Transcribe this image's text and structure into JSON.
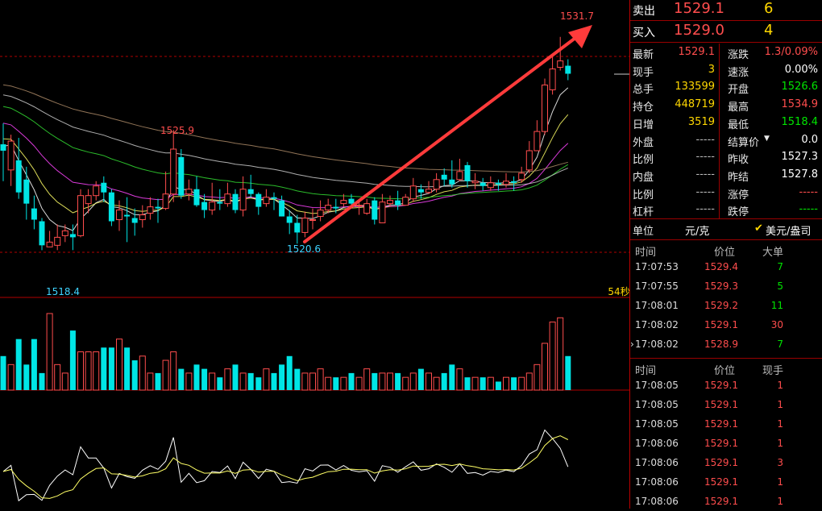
{
  "chart": {
    "annotations": {
      "high_label": "1531.7",
      "peak_label": "1525.9",
      "low_mid_label": "1520.6",
      "low_label": "1518.4",
      "countdown": "54秒"
    }
  },
  "chart_data": {
    "type": "candlestick",
    "candles": [
      [
        1525.0,
        1524.6,
        1526.3,
        1522.7
      ],
      [
        1523.4,
        1525.2,
        1525.6,
        1522.4
      ],
      [
        1524.0,
        1522.0,
        1525.4,
        1521.6
      ],
      [
        1522.8,
        1521.3,
        1523.6,
        1520.3
      ],
      [
        1521.0,
        1520.3,
        1521.8,
        1519.7
      ],
      [
        1520.2,
        1518.7,
        1520.4,
        1518.4
      ],
      [
        1518.6,
        1518.9,
        1519.6,
        1518.6
      ],
      [
        1518.7,
        1519.2,
        1520.0,
        1518.4
      ],
      [
        1519.3,
        1519.6,
        1520.0,
        1518.9
      ],
      [
        1519.4,
        1519.2,
        1520.0,
        1518.4
      ],
      [
        1519.3,
        1521.8,
        1522.2,
        1519.2
      ],
      [
        1521.3,
        1521.8,
        1522.2,
        1520.7
      ],
      [
        1521.8,
        1522.4,
        1522.7,
        1521.5
      ],
      [
        1522.6,
        1522.0,
        1523.0,
        1521.4
      ],
      [
        1522.0,
        1520.2,
        1522.2,
        1519.9
      ],
      [
        1520.3,
        1520.9,
        1521.5,
        1519.6
      ],
      [
        1520.6,
        1520.5,
        1521.7,
        1518.9
      ],
      [
        1520.4,
        1520.1,
        1521.0,
        1519.3
      ],
      [
        1520.3,
        1520.6,
        1521.2,
        1519.8
      ],
      [
        1520.7,
        1521.1,
        1521.7,
        1520.3
      ],
      [
        1521.1,
        1521.0,
        1521.6,
        1520.1
      ],
      [
        1521.0,
        1521.9,
        1523.3,
        1520.9
      ],
      [
        1521.9,
        1524.7,
        1525.9,
        1521.4
      ],
      [
        1524.2,
        1521.8,
        1524.7,
        1521.6
      ],
      [
        1521.9,
        1522.2,
        1522.8,
        1521.5
      ],
      [
        1522.2,
        1521.2,
        1523.0,
        1521.1
      ],
      [
        1521.4,
        1520.9,
        1521.9,
        1520.4
      ],
      [
        1520.9,
        1521.4,
        1522.6,
        1520.6
      ],
      [
        1521.4,
        1521.3,
        1522.2,
        1520.9
      ],
      [
        1521.3,
        1521.9,
        1522.6,
        1521.1
      ],
      [
        1521.9,
        1520.9,
        1522.2,
        1520.7
      ],
      [
        1520.9,
        1522.2,
        1523.0,
        1520.5
      ],
      [
        1522.2,
        1521.9,
        1523.1,
        1521.7
      ],
      [
        1521.9,
        1521.1,
        1522.0,
        1520.6
      ],
      [
        1521.3,
        1521.7,
        1522.2,
        1521.1
      ],
      [
        1521.7,
        1521.6,
        1522.0,
        1520.9
      ],
      [
        1521.5,
        1520.5,
        1521.8,
        1520.5
      ],
      [
        1520.5,
        1520.1,
        1520.9,
        1519.4
      ],
      [
        1520.1,
        1519.5,
        1520.6,
        1518.8
      ],
      [
        1519.5,
        1520.4,
        1520.8,
        1519.2
      ],
      [
        1520.3,
        1520.3,
        1521.0,
        1519.7
      ],
      [
        1520.5,
        1520.9,
        1521.5,
        1520.2
      ],
      [
        1520.9,
        1521.2,
        1521.6,
        1520.7
      ],
      [
        1521.1,
        1521.0,
        1521.6,
        1520.7
      ],
      [
        1521.3,
        1521.5,
        1521.9,
        1521.1
      ],
      [
        1521.6,
        1521.3,
        1521.9,
        1521.2
      ],
      [
        1521.2,
        1521.2,
        1521.4,
        1520.6
      ],
      [
        1520.7,
        1521.3,
        1521.6,
        1520.6
      ],
      [
        1521.5,
        1520.3,
        1521.7,
        1520.0
      ],
      [
        1520.1,
        1521.4,
        1521.9,
        1520.1
      ],
      [
        1521.3,
        1521.5,
        1521.8,
        1521.1
      ],
      [
        1521.5,
        1521.2,
        1522.1,
        1520.9
      ],
      [
        1521.2,
        1521.7,
        1521.9,
        1521.2
      ],
      [
        1521.6,
        1522.4,
        1522.9,
        1521.4
      ],
      [
        1522.2,
        1522.0,
        1522.5,
        1521.6
      ],
      [
        1522.0,
        1522.2,
        1522.7,
        1521.9
      ],
      [
        1522.2,
        1522.8,
        1523.2,
        1522.0
      ],
      [
        1523.1,
        1522.8,
        1523.5,
        1522.4
      ],
      [
        1522.8,
        1522.5,
        1524.0,
        1522.3
      ],
      [
        1522.8,
        1523.3,
        1524.1,
        1522.7
      ],
      [
        1523.7,
        1522.7,
        1523.9,
        1522.3
      ],
      [
        1522.6,
        1522.7,
        1523.2,
        1522.2
      ],
      [
        1522.6,
        1522.4,
        1522.9,
        1522.1
      ],
      [
        1522.3,
        1522.6,
        1523.0,
        1522.1
      ],
      [
        1522.6,
        1522.5,
        1522.8,
        1522.1
      ],
      [
        1522.5,
        1522.7,
        1523.2,
        1522.3
      ],
      [
        1522.7,
        1522.6,
        1523.0,
        1522.1
      ],
      [
        1522.8,
        1523.2,
        1523.6,
        1522.6
      ],
      [
        1523.4,
        1524.6,
        1525.2,
        1523.2
      ],
      [
        1524.6,
        1525.8,
        1526.5,
        1524.6
      ],
      [
        1525.8,
        1528.7,
        1529.1,
        1525.6
      ],
      [
        1528.4,
        1529.7,
        1530.5,
        1528.1
      ],
      [
        1529.8,
        1530.2,
        1531.7,
        1529.6
      ],
      [
        1529.9,
        1529.4,
        1530.3,
        1529.0
      ]
    ],
    "volume": [
      8,
      6,
      12,
      6,
      12,
      4,
      18,
      6,
      4,
      14,
      9,
      9,
      9,
      10,
      10,
      12,
      10,
      7,
      8,
      4,
      4,
      7,
      9,
      5,
      4,
      6,
      5,
      4,
      3,
      5,
      6,
      4,
      4,
      3,
      5,
      4,
      6,
      8,
      5,
      4,
      4,
      5,
      3,
      3,
      3,
      4,
      3,
      5,
      4,
      4,
      4,
      4,
      3,
      4,
      5,
      4,
      3,
      4,
      6,
      5,
      3,
      3,
      3,
      3,
      2,
      3,
      3,
      3,
      4,
      6,
      11,
      16,
      17,
      8
    ],
    "indicator_lines": 2,
    "moving_average_lines": 6,
    "ylim": [
      1515.5,
      1534.0
    ]
  },
  "quote": {
    "sell_label": "卖出",
    "sell_price": "1529.1",
    "sell_vol": "6",
    "buy_label": "买入",
    "buy_price": "1529.0",
    "buy_vol": "4",
    "rows": [
      {
        "k1": "最新",
        "v1": "1529.1",
        "c1": "red",
        "k2": "涨跌",
        "v2": "1.3/0.09%",
        "c2": "red"
      },
      {
        "k1": "现手",
        "v1": "3",
        "c1": "yellow",
        "k2": "速涨",
        "v2": "0.00%",
        "c2": "white"
      },
      {
        "k1": "总手",
        "v1": "133599",
        "c1": "yellow",
        "k2": "开盘",
        "v2": "1526.6",
        "c2": "green"
      },
      {
        "k1": "持仓",
        "v1": "448719",
        "c1": "yellow",
        "k2": "最高",
        "v2": "1534.9",
        "c2": "red"
      },
      {
        "k1": "日增",
        "v1": "3519",
        "c1": "yellow",
        "k2": "最低",
        "v2": "1518.4",
        "c2": "green"
      },
      {
        "k1": "外盘",
        "v1": "-----",
        "c1": "gray",
        "k2": "结算价",
        "v2": "0.0",
        "c2": "white"
      },
      {
        "k1": "比例",
        "v1": "-----",
        "c1": "gray",
        "k2": "昨收",
        "v2": "1527.3",
        "c2": "white"
      },
      {
        "k1": "内盘",
        "v1": "-----",
        "c1": "gray",
        "k2": "昨结",
        "v2": "1527.8",
        "c2": "white"
      },
      {
        "k1": "比例",
        "v1": "-----",
        "c1": "gray",
        "k2": "涨停",
        "v2": "-----",
        "c2": "dash-red"
      },
      {
        "k1": "杠杆",
        "v1": "-----",
        "c1": "gray",
        "k2": "跌停",
        "v2": "-----",
        "c2": "dash-green"
      }
    ],
    "unit_label": "单位",
    "unit_value": "元/克",
    "unit_option": "美元/盎司"
  },
  "big_orders": {
    "headers": [
      "时间",
      "价位",
      "大单"
    ],
    "rows": [
      {
        "time": "17:07:53",
        "price": "1529.4",
        "vol": "7",
        "color": "green"
      },
      {
        "time": "17:07:55",
        "price": "1529.3",
        "vol": "5",
        "color": "green"
      },
      {
        "time": "17:08:01",
        "price": "1529.2",
        "vol": "11",
        "color": "green"
      },
      {
        "time": "17:08:02",
        "price": "1529.1",
        "vol": "30",
        "color": "red"
      },
      {
        "time": "17:08:02",
        "price": "1528.9",
        "vol": "7",
        "color": "green"
      }
    ]
  },
  "ticks": {
    "headers": [
      "时间",
      "价位",
      "现手"
    ],
    "rows": [
      {
        "time": "17:08:05",
        "price": "1529.1",
        "vol": "1"
      },
      {
        "time": "17:08:05",
        "price": "1529.1",
        "vol": "1"
      },
      {
        "time": "17:08:05",
        "price": "1529.1",
        "vol": "1"
      },
      {
        "time": "17:08:06",
        "price": "1529.1",
        "vol": "1"
      },
      {
        "time": "17:08:06",
        "price": "1529.1",
        "vol": "3"
      },
      {
        "time": "17:08:06",
        "price": "1529.1",
        "vol": "1"
      },
      {
        "time": "17:08:06",
        "price": "1529.1",
        "vol": "1"
      }
    ]
  },
  "colors": {
    "up": "#ff4d4d",
    "down": "#00e5e5",
    "grid": "#b00000",
    "arrow": "#ff3b3b"
  }
}
